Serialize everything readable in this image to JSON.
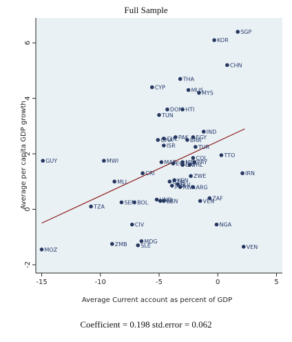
{
  "chart_data": {
    "type": "scatter",
    "title": "Full Sample",
    "xlabel": "Average Current account as percent of GDP",
    "ylabel": "Average per capita GDP growth",
    "caption": "Coefficient = 0.198 std.error = 0.062",
    "xlim": [
      -15.5,
      5.5
    ],
    "ylim": [
      -2.3,
      6.9
    ],
    "xticks": [
      -15,
      -10,
      -5,
      0,
      5
    ],
    "yticks": [
      -2,
      0,
      2,
      4,
      6
    ],
    "grid": false,
    "colors": {
      "points": "#25365f",
      "fit_line": "#8b1a1a",
      "plot_bg": "#eaf1f5"
    },
    "fit_line": {
      "x": [
        -15,
        2.3
      ],
      "y": [
        -0.5,
        2.9
      ]
    },
    "points": [
      {
        "label": "SGP",
        "x": 1.7,
        "y": 6.4
      },
      {
        "label": "KOR",
        "x": -0.3,
        "y": 6.1
      },
      {
        "label": "CHN",
        "x": 0.8,
        "y": 5.2
      },
      {
        "label": "THA",
        "x": -3.2,
        "y": 4.7
      },
      {
        "label": "CYP",
        "x": -5.6,
        "y": 4.4
      },
      {
        "label": "MUS",
        "x": -2.5,
        "y": 4.3
      },
      {
        "label": "MYS",
        "x": -1.6,
        "y": 4.2
      },
      {
        "label": "HTI",
        "x": -3.0,
        "y": 3.6
      },
      {
        "label": "DOM",
        "x": -4.3,
        "y": 3.6
      },
      {
        "label": "TUN",
        "x": -5.0,
        "y": 3.4
      },
      {
        "label": "IND",
        "x": -1.2,
        "y": 2.8
      },
      {
        "label": "EGY",
        "x": -2.1,
        "y": 2.6
      },
      {
        "label": "PAK",
        "x": -3.6,
        "y": 2.6
      },
      {
        "label": "BRA",
        "x": -2.6,
        "y": 2.5
      },
      {
        "label": "CHL",
        "x": -4.6,
        "y": 2.55
      },
      {
        "label": "GHA",
        "x": -5.1,
        "y": 2.5
      },
      {
        "label": "ISR",
        "x": -4.6,
        "y": 2.3
      },
      {
        "label": "TUR",
        "x": -1.9,
        "y": 2.25
      },
      {
        "label": "TTO",
        "x": 0.3,
        "y": 1.95
      },
      {
        "label": "COL",
        "x": -2.1,
        "y": 1.85
      },
      {
        "label": "MEX",
        "x": -3.0,
        "y": 1.7
      },
      {
        "label": "PRY",
        "x": -2.0,
        "y": 1.7
      },
      {
        "label": "MWI",
        "x": -9.7,
        "y": 1.75
      },
      {
        "label": "MAR",
        "x": -4.8,
        "y": 1.7
      },
      {
        "label": "ECU",
        "x": -3.8,
        "y": 1.65
      },
      {
        "label": "URY",
        "x": -3.0,
        "y": 1.6
      },
      {
        "label": "PHL",
        "x": -2.4,
        "y": 1.6
      },
      {
        "label": "GUY",
        "x": -14.9,
        "y": 1.75
      },
      {
        "label": "CRI",
        "x": -6.4,
        "y": 1.3
      },
      {
        "label": "IRN",
        "x": 2.1,
        "y": 1.3
      },
      {
        "label": "ZWE",
        "x": -2.3,
        "y": 1.2
      },
      {
        "label": "KEN",
        "x": -3.7,
        "y": 1.05
      },
      {
        "label": "GTM",
        "x": -4.1,
        "y": 1.0
      },
      {
        "label": "MLI",
        "x": -8.8,
        "y": 1.0
      },
      {
        "label": "SLV",
        "x": -3.4,
        "y": 0.9
      },
      {
        "label": "RWA",
        "x": -3.2,
        "y": 0.8
      },
      {
        "label": "ARG",
        "x": -2.1,
        "y": 0.8
      },
      {
        "label": "JAM",
        "x": -3.9,
        "y": 0.85
      },
      {
        "label": "ZAF",
        "x": -0.7,
        "y": 0.4
      },
      {
        "label": "HND",
        "x": -5.2,
        "y": 0.35
      },
      {
        "label": "PER",
        "x": -4.9,
        "y": 0.3
      },
      {
        "label": "BEN",
        "x": -4.6,
        "y": 0.3
      },
      {
        "label": "BOL",
        "x": -7.1,
        "y": 0.25
      },
      {
        "label": "SEN",
        "x": -8.2,
        "y": 0.25
      },
      {
        "label": "VEN",
        "x": -1.5,
        "y": 0.3
      },
      {
        "label": "TZA",
        "x": -10.8,
        "y": 0.1
      },
      {
        "label": "NGA",
        "x": -0.1,
        "y": -0.55
      },
      {
        "label": "CIV",
        "x": -7.3,
        "y": -0.55
      },
      {
        "label": "MDG",
        "x": -6.5,
        "y": -1.15
      },
      {
        "label": "ZMB",
        "x": -9.0,
        "y": -1.25
      },
      {
        "label": "SLE",
        "x": -6.8,
        "y": -1.3
      },
      {
        "label": "VEN",
        "x": 2.2,
        "y": -1.35
      },
      {
        "label": "MOZ",
        "x": -15.0,
        "y": -1.45
      }
    ]
  }
}
